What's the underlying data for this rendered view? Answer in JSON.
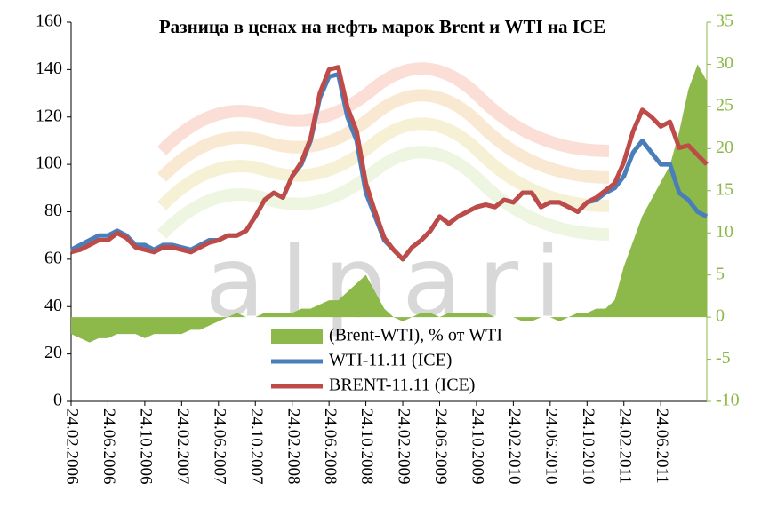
{
  "chart_data": {
    "type": "line",
    "title": "Разница в ценах на нефть марок Brent и WTI на ICE",
    "watermark": "alpari",
    "categories": [
      "24.02.2006",
      null,
      null,
      null,
      "24.06.2006",
      null,
      null,
      null,
      "24.10.2006",
      null,
      null,
      null,
      "24.02.2007",
      null,
      null,
      null,
      "24.06.2007",
      null,
      null,
      null,
      "24.10.2007",
      null,
      null,
      null,
      "24.02.2008",
      null,
      null,
      null,
      "24.06.2008",
      null,
      null,
      null,
      "24.10.2008",
      null,
      null,
      null,
      "24.02.2009",
      null,
      null,
      null,
      "24.06.2009",
      null,
      null,
      null,
      "24.10.2009",
      null,
      null,
      null,
      "24.02.2010",
      null,
      null,
      null,
      "24.06.2010",
      null,
      null,
      null,
      "24.10.2010",
      null,
      null,
      null,
      "24.02.2011",
      null,
      null,
      null,
      "24.06.2011",
      null,
      null,
      null,
      null,
      null
    ],
    "series": [
      {
        "name": "(Brent-WTI), % от WTI",
        "type": "area",
        "color": "#8db84a",
        "axis": "y2",
        "values": [
          -2,
          -2.5,
          -3,
          -2.5,
          -2.5,
          -2,
          -2,
          -2,
          -2.5,
          -2,
          -2,
          -2,
          -2,
          -1.5,
          -1.5,
          -1,
          -0.5,
          0,
          0.5,
          0,
          0,
          0.5,
          0.5,
          0.5,
          0.5,
          1,
          1,
          1.5,
          2,
          2,
          3,
          4,
          5,
          3,
          1,
          0,
          -0.5,
          0,
          0.5,
          0.5,
          0,
          0.5,
          0.5,
          0.5,
          0.5,
          0.5,
          0,
          0,
          0,
          -0.5,
          -0.5,
          0,
          0,
          -0.5,
          0,
          0.5,
          0.5,
          1,
          1,
          2,
          6,
          9,
          12,
          14,
          16,
          18,
          22,
          27,
          30,
          28
        ]
      },
      {
        "name": "WTI-11.11 (ICE)",
        "type": "line",
        "color": "#4a7ebb",
        "values": [
          64,
          66,
          68,
          70,
          70,
          72,
          70,
          66,
          66,
          64,
          66,
          66,
          65,
          64,
          66,
          68,
          68,
          70,
          70,
          72,
          78,
          85,
          88,
          86,
          95,
          100,
          110,
          128,
          137,
          138,
          120,
          110,
          88,
          78,
          68,
          64,
          60,
          65,
          68,
          72,
          78,
          75,
          78,
          80,
          82,
          83,
          82,
          85,
          84,
          88,
          88,
          82,
          84,
          84,
          82,
          80,
          84,
          85,
          88,
          90,
          95,
          105,
          110,
          105,
          100,
          100,
          88,
          85,
          80,
          78
        ]
      },
      {
        "name": "BRENT-11.11 (ICE)",
        "type": "line",
        "color": "#be4b48",
        "values": [
          63,
          64,
          66,
          68,
          68,
          71,
          69,
          65,
          64,
          63,
          65,
          65,
          64,
          63,
          65,
          67,
          68,
          70,
          70,
          72,
          78,
          85,
          88,
          86,
          95,
          101,
          111,
          130,
          140,
          141,
          124,
          114,
          92,
          80,
          69,
          64,
          60,
          65,
          68,
          72,
          78,
          75,
          78,
          80,
          82,
          83,
          82,
          85,
          84,
          88,
          88,
          82,
          84,
          84,
          82,
          80,
          84,
          86,
          89,
          92,
          101,
          114,
          123,
          120,
          116,
          118,
          107,
          108,
          104,
          100
        ]
      }
    ],
    "ylim": [
      0,
      160
    ],
    "yticks": [
      0,
      20,
      40,
      60,
      80,
      100,
      120,
      140,
      160
    ],
    "y2lim": [
      -10,
      35
    ],
    "y2ticks": [
      -10,
      -5,
      0,
      5,
      10,
      15,
      20,
      25,
      30,
      35
    ],
    "y2color": "#8db84a"
  }
}
